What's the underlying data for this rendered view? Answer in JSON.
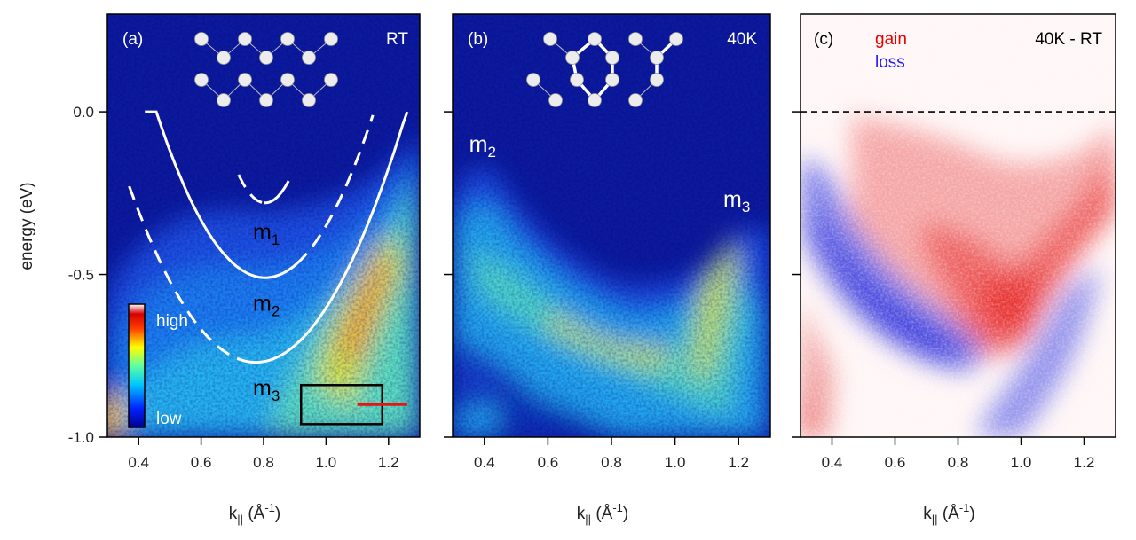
{
  "chart_data": {
    "type": "heatmap",
    "y_axis": {
      "label": "energy (eV)",
      "range": [
        -1.0,
        0.3
      ],
      "ticks": [
        0.0,
        -0.5,
        -1.0
      ],
      "tick_labels": [
        "0.0",
        "-0.5",
        "-1.0"
      ]
    },
    "x_axis": {
      "label": "k",
      "label_subscript": "||",
      "label_unit": " (Å",
      "label_unit_sup": "-1",
      "label_close": ")",
      "range": [
        0.3,
        1.3
      ],
      "ticks": [
        0.4,
        0.6,
        0.8,
        1.0,
        1.2
      ],
      "tick_labels": [
        "0.4",
        "0.6",
        "0.8",
        "1.0",
        "1.2"
      ]
    },
    "panels": [
      {
        "id": "a",
        "label": "(a)",
        "condition": "RT",
        "colormap": "jet",
        "bands": [
          {
            "name": "m",
            "subscript": "1",
            "style": "solid",
            "type": "parabola",
            "k0": 0.805,
            "e0": -0.28,
            "k_range": [
              0.72,
              0.88
            ],
            "dashed_range": [
              0.72,
              0.8
            ]
          },
          {
            "name": "m",
            "subscript": "2",
            "style": "mixed",
            "type": "parabola",
            "k0": 0.805,
            "e0": -0.51,
            "k_range": [
              0.42,
              1.15
            ],
            "dashed_range": [
              0.9,
              1.15
            ]
          },
          {
            "name": "m",
            "subscript": "3",
            "style": "mixed",
            "type": "parabola",
            "k0": 0.775,
            "e0": -0.77,
            "k_range": [
              0.37,
              1.26
            ],
            "dashed_range": [
              0.37,
              0.72
            ]
          }
        ],
        "band_label_positions": [
          [
            0.8,
            -0.37
          ],
          [
            0.8,
            -0.59
          ],
          [
            0.8,
            -0.85
          ]
        ],
        "colorbar": {
          "high": "high",
          "low": "low"
        },
        "integration_box": {
          "k_range": [
            0.92,
            1.18
          ],
          "e_range": [
            -0.96,
            -0.84
          ]
        },
        "red_line": {
          "k_range": [
            1.1,
            1.26
          ],
          "energy": -0.9
        }
      },
      {
        "id": "b",
        "label": "(b)",
        "condition": "40K",
        "colormap": "jet",
        "band_labels": [
          {
            "name": "m",
            "subscript": "2",
            "k": 0.38,
            "e": -0.1
          },
          {
            "name": "m",
            "subscript": "3",
            "k": 1.18,
            "e": -0.27
          }
        ]
      },
      {
        "id": "c",
        "label": "(c)",
        "condition": "40K - RT",
        "colormap": "red-white-blue",
        "legend": [
          {
            "label": "gain",
            "color": "#e60000"
          },
          {
            "label": "loss",
            "color": "#1a1aff"
          }
        ],
        "fermi_level_dashed": 0.0
      }
    ]
  }
}
